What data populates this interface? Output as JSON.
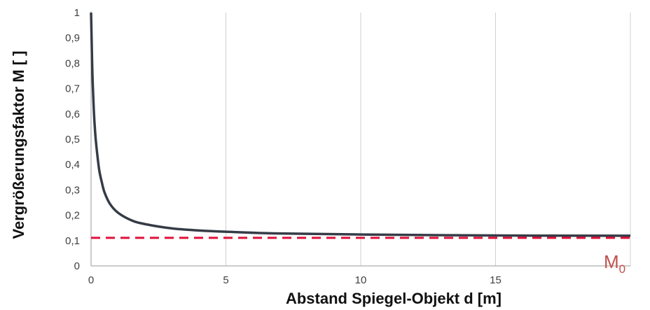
{
  "chart_data": {
    "type": "line",
    "xlabel": "Abstand Spiegel-Objekt d [m]",
    "ylabel": "Vergrößerungsfaktor M [ ]",
    "xlim": [
      0,
      20
    ],
    "ylim": [
      0,
      1
    ],
    "x_ticks": [
      0,
      5,
      10,
      15
    ],
    "y_ticks": [
      0,
      0.1,
      0.2,
      0.3,
      0.4,
      0.5,
      0.6,
      0.7,
      0.8,
      0.9,
      1
    ],
    "x_tick_labels": [
      "0",
      "5",
      "10",
      "15"
    ],
    "y_tick_labels": [
      "0",
      "0,1",
      "0,2",
      "0,3",
      "0,4",
      "0,5",
      "0,6",
      "0,7",
      "0,8",
      "0,9",
      "1"
    ],
    "grid": "vertical",
    "series": [
      {
        "style": "solid",
        "color": "#363c46",
        "x": [
          0,
          0.02,
          0.05,
          0.1,
          0.15,
          0.2,
          0.3,
          0.4,
          0.5,
          0.7,
          1,
          1.5,
          2,
          3,
          4,
          5,
          7,
          10,
          15,
          20
        ],
        "y": [
          1.0,
          0.9,
          0.76,
          0.62,
          0.53,
          0.47,
          0.38,
          0.33,
          0.29,
          0.245,
          0.21,
          0.18,
          0.165,
          0.148,
          0.14,
          0.135,
          0.128,
          0.124,
          0.12,
          0.119
        ]
      },
      {
        "style": "dashed",
        "color": "#e0103a",
        "x": [
          0,
          20
        ],
        "y": [
          0.111,
          0.111
        ]
      }
    ],
    "annotations": [
      {
        "base": "M",
        "subscript": "0",
        "color": "#c0504d"
      }
    ]
  }
}
